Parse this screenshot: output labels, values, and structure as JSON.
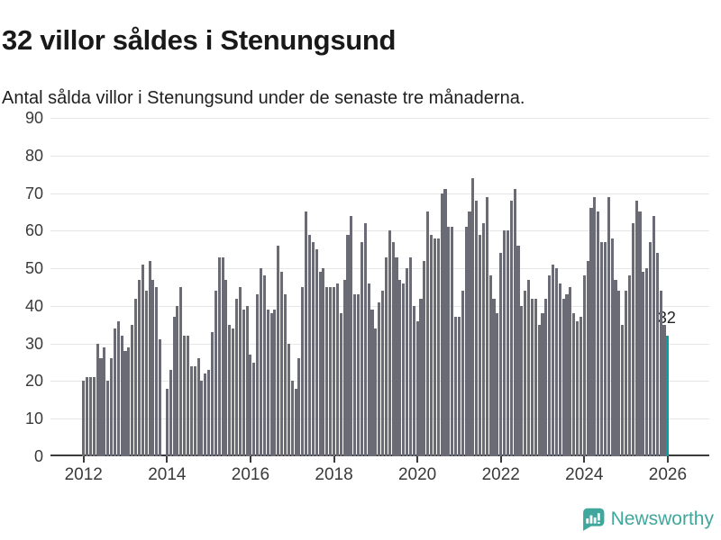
{
  "title": "32 villor såldes i Stenungsund",
  "subtitle": "Antal sålda villor i Stenungsund under de senaste tre månaderna.",
  "annotation": {
    "label": "32"
  },
  "attribution": {
    "brand": "Newsworthy",
    "icon": "bar-chart-speech-bubble-icon"
  },
  "colors": {
    "bar": "#6b6b75",
    "highlight": "#00a2a2",
    "brand": "#3fa79c",
    "gridline": "#e6e6e6",
    "axis": "#3c3c3c",
    "title": "#191919",
    "text": "#1f1f1f",
    "tick_label": "#3a3a3a"
  },
  "chart_data": {
    "type": "bar",
    "title": "32 villor såldes i Stenungsund",
    "subtitle": "Antal sålda villor i Stenungsund under de senaste tre månaderna.",
    "xlabel": "",
    "ylabel": "",
    "ylim": [
      0,
      90
    ],
    "y_ticks": [
      0,
      10,
      20,
      30,
      40,
      50,
      60,
      70,
      80,
      90
    ],
    "x_tick_labels": [
      "2012",
      "2014",
      "2016",
      "2018",
      "2020",
      "2022",
      "2024",
      "2026"
    ],
    "grid": "horizontal",
    "frequency": "monthly",
    "note": "null = missing month (gap in bars, Dec 2013); last bar highlighted teal with data label 32",
    "highlight_last_value": 32,
    "years": [
      {
        "year": 2012,
        "values": [
          20,
          21,
          21,
          21,
          30,
          26,
          29,
          20,
          26,
          34,
          36,
          32
        ]
      },
      {
        "year": 2013,
        "values": [
          28,
          29,
          35,
          42,
          47,
          51,
          44,
          52,
          47,
          45,
          31,
          null
        ]
      },
      {
        "year": 2014,
        "values": [
          18,
          23,
          37,
          40,
          45,
          32,
          32,
          24,
          24,
          26,
          20,
          22
        ]
      },
      {
        "year": 2015,
        "values": [
          23,
          33,
          44,
          53,
          53,
          47,
          35,
          34,
          42,
          45,
          39,
          40
        ]
      },
      {
        "year": 2016,
        "values": [
          27,
          25,
          43,
          50,
          48,
          39,
          38,
          39,
          56,
          49,
          43,
          30
        ]
      },
      {
        "year": 2017,
        "values": [
          20,
          18,
          26,
          45,
          65,
          59,
          57,
          55,
          49,
          50,
          45,
          45
        ]
      },
      {
        "year": 2018,
        "values": [
          45,
          46,
          38,
          47,
          59,
          64,
          43,
          43,
          57,
          62,
          46,
          39
        ]
      },
      {
        "year": 2019,
        "values": [
          34,
          41,
          44,
          53,
          60,
          57,
          53,
          47,
          46,
          50,
          53,
          40
        ]
      },
      {
        "year": 2020,
        "values": [
          36,
          42,
          52,
          65,
          59,
          58,
          58,
          70,
          71,
          61,
          61,
          37
        ]
      },
      {
        "year": 2021,
        "values": [
          37,
          44,
          61,
          65,
          74,
          68,
          59,
          62,
          69,
          48,
          42,
          38
        ]
      },
      {
        "year": 2022,
        "values": [
          54,
          60,
          60,
          68,
          71,
          56,
          40,
          44,
          47,
          42,
          42,
          35
        ]
      },
      {
        "year": 2023,
        "values": [
          38,
          42,
          48,
          51,
          50,
          46,
          42,
          43,
          45,
          38,
          36,
          37
        ]
      },
      {
        "year": 2024,
        "values": [
          48,
          52,
          66,
          69,
          65,
          57,
          57,
          69,
          58,
          47,
          44,
          35
        ]
      },
      {
        "year": 2025,
        "values": [
          44,
          48,
          62,
          68,
          65,
          49,
          50,
          57,
          64,
          54,
          44,
          35
        ]
      },
      {
        "year": 2026,
        "values": [
          32
        ]
      }
    ]
  }
}
